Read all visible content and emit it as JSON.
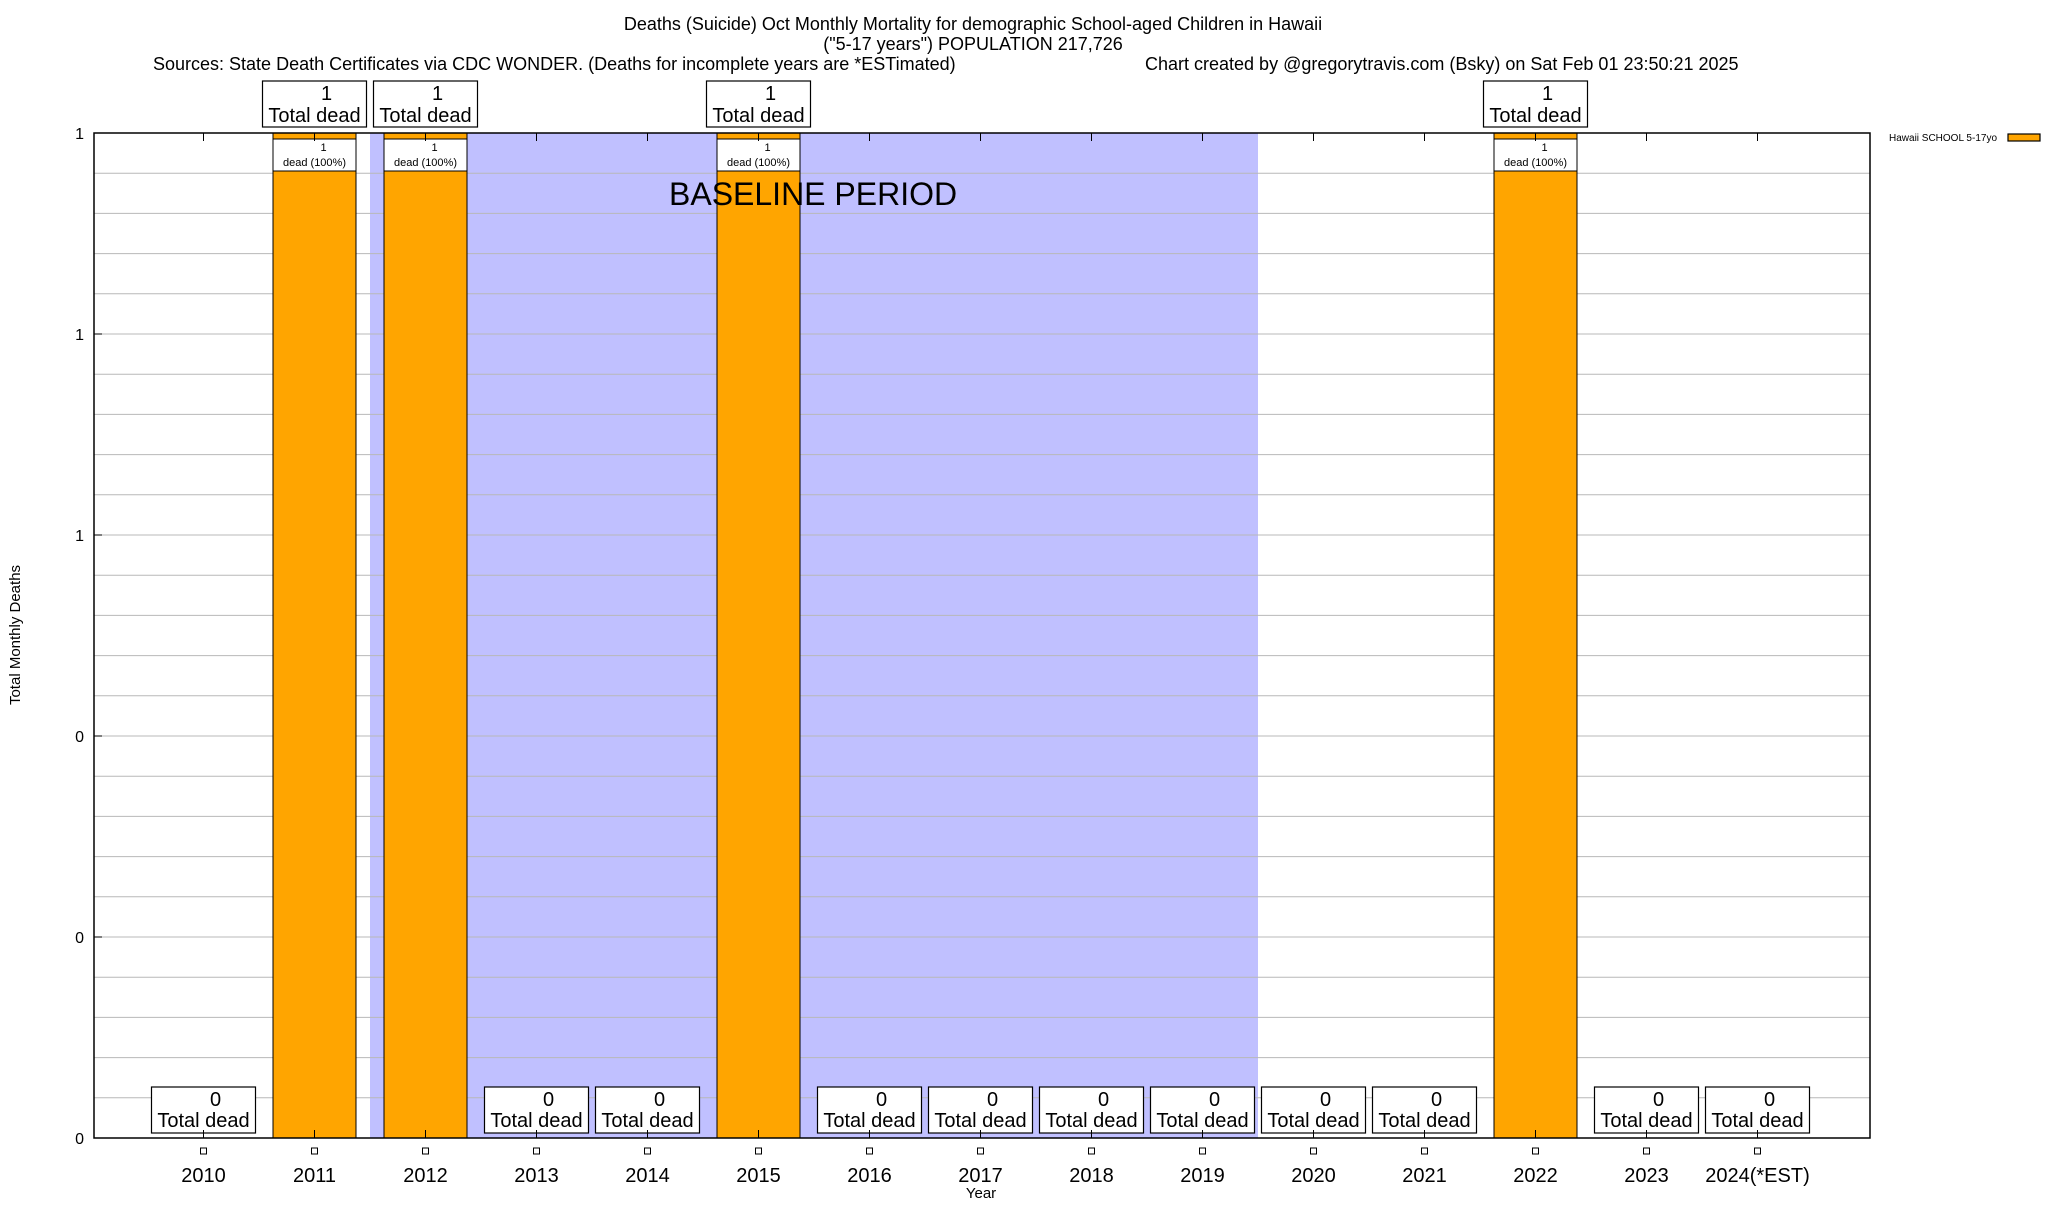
{
  "chart_data": {
    "type": "bar",
    "title": "Deaths (Suicide) Oct Monthly Mortality for demographic School-aged Children in Hawaii",
    "subtitle": "(\"5-17 years\") POPULATION 217,726",
    "sources": "Sources: State Death Certificates via CDC WONDER. (Deaths for incomplete years are *ESTimated)",
    "credit": "Chart created by @gregorytravis.com (Bsky) on Sat Feb 01 23:50:21 2025",
    "xlabel": "Year",
    "ylabel": "Total Monthly Deaths",
    "categories": [
      "2010",
      "2011",
      "2012",
      "2013",
      "2014",
      "2015",
      "2016",
      "2017",
      "2018",
      "2019",
      "2020",
      "2021",
      "2022",
      "2023",
      "2024(*EST)"
    ],
    "series": [
      {
        "name": "Hawaii SCHOOL 5-17yo",
        "color": "#FFA500",
        "values": [
          0,
          1,
          1,
          0,
          0,
          1,
          0,
          0,
          0,
          0,
          0,
          0,
          1,
          0,
          0
        ]
      }
    ],
    "total_label_suffix": "Total dead",
    "bar_label_suffix": "dead (100%)",
    "ylim": [
      0,
      1
    ],
    "yticks": [
      0,
      0.2,
      0.4,
      0.6,
      0.8,
      1.0
    ],
    "ytick_labels": [
      "0",
      "0",
      "0",
      "1",
      "1",
      "1"
    ],
    "grid": true,
    "legend": {
      "placement": "right-top",
      "label": "Hawaii SCHOOL 5-17yo"
    },
    "annotation": {
      "text": "BASELINE PERIOD",
      "span": [
        "2012",
        "2019"
      ],
      "color": "#C0C0FF"
    }
  }
}
